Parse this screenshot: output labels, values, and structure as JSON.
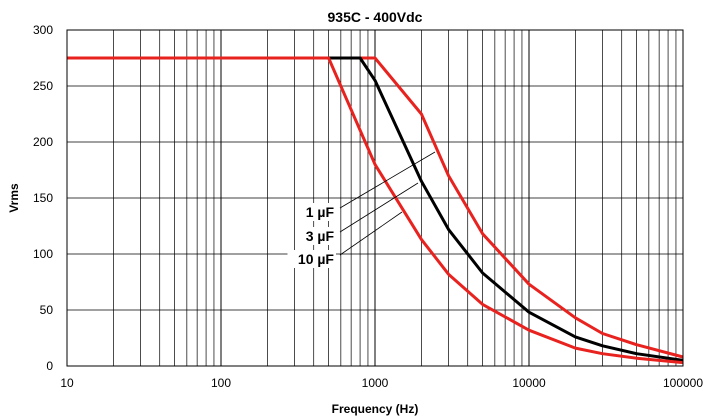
{
  "chart_data": {
    "type": "line",
    "title": "935C - 400Vdc",
    "xlabel": "Frequency  (Hz)",
    "ylabel": "Vrms",
    "x_scale": "log",
    "xlim": [
      10,
      100000
    ],
    "ylim": [
      0,
      300
    ],
    "x_ticks": [
      "10",
      "100",
      "1000",
      "10000",
      "100000"
    ],
    "y_ticks": [
      "0",
      "50",
      "100",
      "150",
      "200",
      "250",
      "300"
    ],
    "grid": true,
    "series": [
      {
        "name": "1 µF",
        "color": "#e8231f",
        "points": [
          [
            10,
            275
          ],
          [
            1000,
            275
          ],
          [
            2000,
            225
          ],
          [
            3000,
            170
          ],
          [
            5000,
            118
          ],
          [
            10000,
            73
          ],
          [
            20000,
            43
          ],
          [
            30000,
            29
          ],
          [
            50000,
            19
          ],
          [
            100000,
            8
          ]
        ]
      },
      {
        "name": "3 µF",
        "color": "#000000",
        "points": [
          [
            10,
            275
          ],
          [
            800,
            275
          ],
          [
            1000,
            255
          ],
          [
            2000,
            165
          ],
          [
            3000,
            122
          ],
          [
            5000,
            83
          ],
          [
            10000,
            48
          ],
          [
            20000,
            26
          ],
          [
            30000,
            18
          ],
          [
            50000,
            11
          ],
          [
            100000,
            5
          ]
        ]
      },
      {
        "name": "10 µF",
        "color": "#e8231f",
        "points": [
          [
            10,
            275
          ],
          [
            500,
            275
          ],
          [
            1000,
            180
          ],
          [
            2000,
            113
          ],
          [
            3000,
            82
          ],
          [
            5000,
            55
          ],
          [
            10000,
            32
          ],
          [
            20000,
            16
          ],
          [
            30000,
            11
          ],
          [
            50000,
            7
          ],
          [
            100000,
            3
          ]
        ]
      }
    ]
  }
}
